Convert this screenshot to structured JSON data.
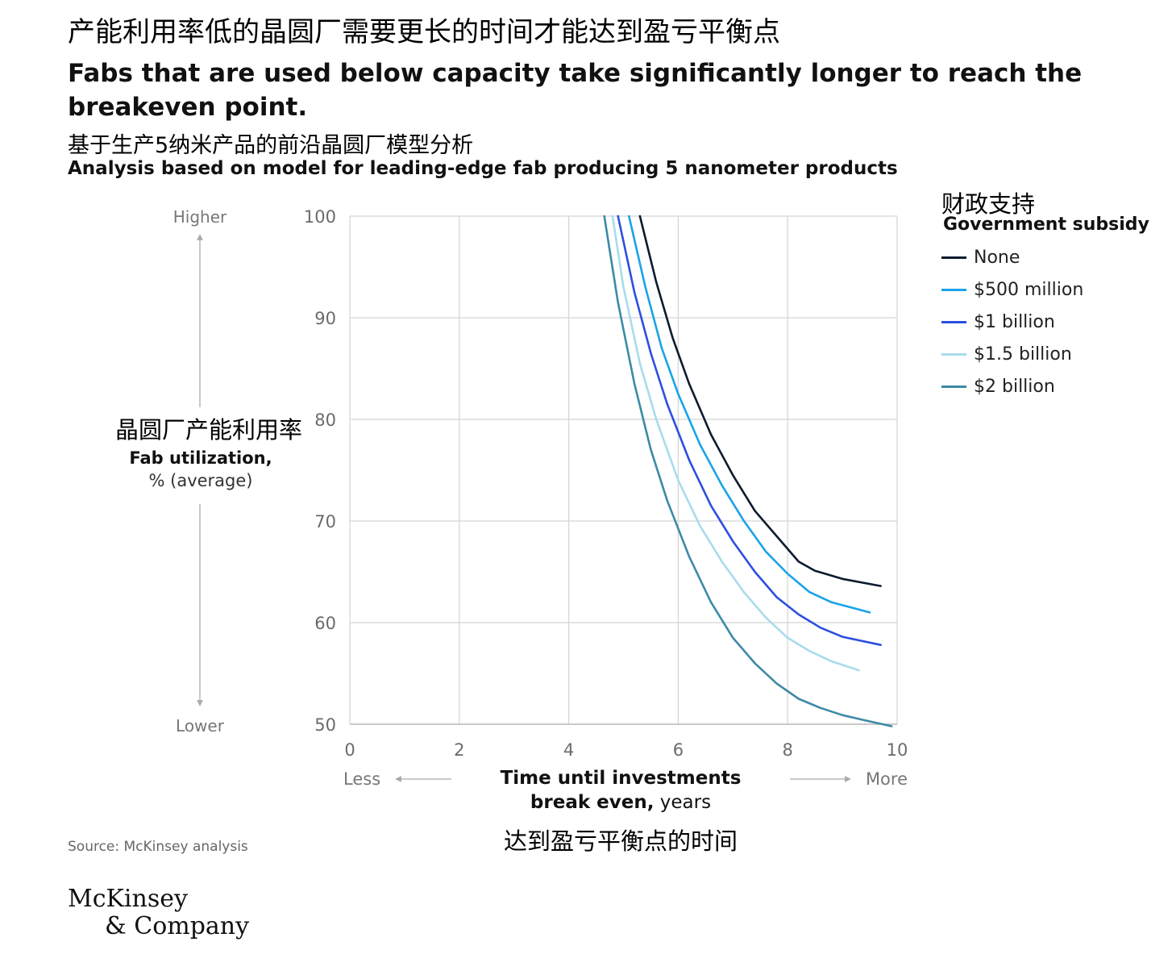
{
  "title_cn": "产能利用率低的晶圆厂需要更长的时间才能达到盈亏平衡点",
  "title_en": "Fabs that are used below capacity take significantly longer to reach the breakeven point.",
  "subtitle_cn": "基于生产5纳米产品的前沿晶圆厂模型分析",
  "subtitle_en": "Analysis based on model for leading-edge fab producing 5 nanometer products",
  "source": "Source: McKinsey analysis",
  "logo": {
    "line1": "McKinsey",
    "line2": "& Company"
  },
  "chart_data": {
    "type": "line",
    "ylabel_cn": "晶圆厂产能利用率",
    "ylabel_line1": "Fab utilization,",
    "ylabel_line2": "% (average)",
    "y_side_high": "Higher",
    "y_side_low": "Lower",
    "xlabel_cn": "达到盈亏平衡点的时间",
    "xlabel_line1": "Time until investments",
    "xlabel_line2_bold": "break even,",
    "xlabel_line2_rest": " years",
    "x_side_less": "Less",
    "x_side_more": "More",
    "xlim": [
      0,
      10
    ],
    "ylim": [
      50,
      100
    ],
    "xticks": [
      0,
      2,
      4,
      6,
      8,
      10
    ],
    "yticks": [
      50,
      60,
      70,
      80,
      90,
      100
    ],
    "grid": true,
    "legend_title_cn": "财政支持",
    "legend_title": "Government subsidy",
    "legend_position": "right",
    "series": [
      {
        "name": "None",
        "color": "#0d1b2e",
        "x": [
          5.3,
          5.6,
          5.9,
          6.2,
          6.6,
          7.0,
          7.4,
          7.8,
          8.2,
          8.5,
          9.0,
          9.7
        ],
        "y": [
          100,
          93.5,
          88,
          83.5,
          78.5,
          74.5,
          71,
          68.5,
          66,
          65.1,
          64.3,
          63.6
        ]
      },
      {
        "name": "$500 million",
        "color": "#1aa3e8",
        "x": [
          5.1,
          5.4,
          5.7,
          6.0,
          6.4,
          6.8,
          7.2,
          7.6,
          8.0,
          8.4,
          8.8,
          9.5
        ],
        "y": [
          100,
          93,
          87,
          82.5,
          77.5,
          73.5,
          70,
          67,
          64.8,
          63,
          62,
          61
        ]
      },
      {
        "name": "$1 billion",
        "color": "#2c4fe0",
        "x": [
          4.9,
          5.2,
          5.5,
          5.8,
          6.2,
          6.6,
          7.0,
          7.4,
          7.8,
          8.2,
          8.6,
          9.0,
          9.7
        ],
        "y": [
          100,
          92.5,
          86.5,
          81.5,
          76,
          71.5,
          68,
          65,
          62.5,
          60.8,
          59.5,
          58.6,
          57.8
        ]
      },
      {
        "name": "$1.5 billion",
        "color": "#a8dcec",
        "x": [
          4.8,
          5.0,
          5.3,
          5.6,
          6.0,
          6.4,
          6.8,
          7.2,
          7.6,
          8.0,
          8.4,
          8.8,
          9.3
        ],
        "y": [
          100,
          93,
          85.5,
          80,
          74,
          69.5,
          66,
          63,
          60.5,
          58.5,
          57.2,
          56.2,
          55.3
        ]
      },
      {
        "name": "$2 billion",
        "color": "#3d8aa6",
        "x": [
          4.65,
          4.9,
          5.2,
          5.5,
          5.8,
          6.2,
          6.6,
          7.0,
          7.4,
          7.8,
          8.2,
          8.6,
          9.0,
          9.4,
          9.9
        ],
        "y": [
          100,
          91.5,
          83.5,
          77,
          72,
          66.5,
          62,
          58.5,
          56,
          54,
          52.5,
          51.6,
          50.9,
          50.4,
          49.8
        ]
      }
    ]
  }
}
